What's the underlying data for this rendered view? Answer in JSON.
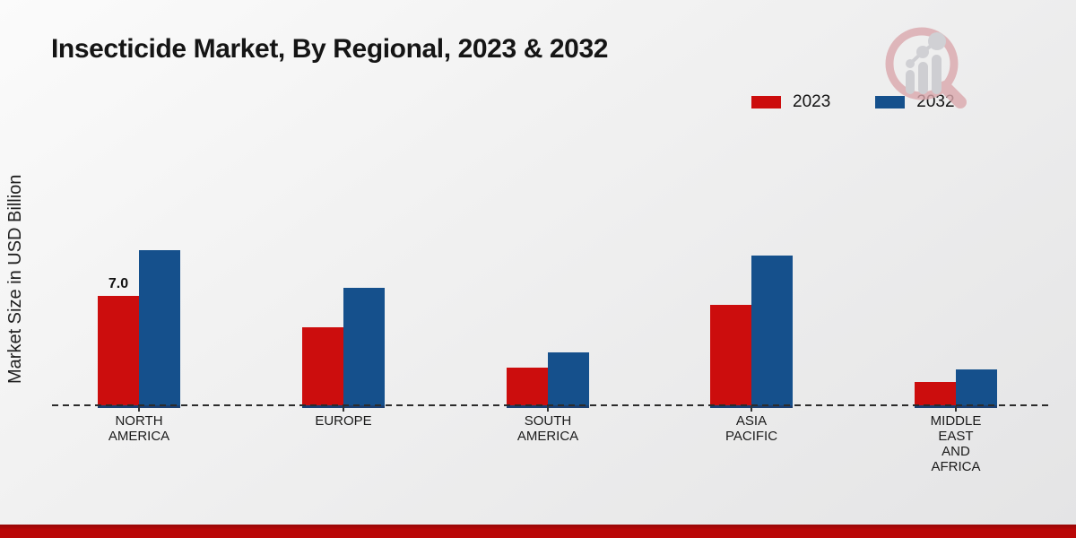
{
  "page": {
    "title": "Insecticide Market, By Regional, 2023 & 2032",
    "brand_logo": "magnifier-bar-chart-logo",
    "accent_bottom_bar_color": "#ba0707"
  },
  "chart_data": {
    "type": "bar",
    "title": "Insecticide Market, By Regional, 2023 & 2032",
    "xlabel": "",
    "ylabel": "Market Size in USD Billion",
    "ylim": [
      0,
      10.5
    ],
    "grid": false,
    "baseline_style": "dashed",
    "legend_position": "top-right",
    "categories": [
      {
        "name": "North America",
        "lines": [
          "NORTH",
          "AMERICA"
        ]
      },
      {
        "name": "Europe",
        "lines": [
          "EUROPE"
        ]
      },
      {
        "name": "South America",
        "lines": [
          "SOUTH",
          "AMERICA"
        ]
      },
      {
        "name": "Asia Pacific",
        "lines": [
          "ASIA",
          "PACIFIC"
        ]
      },
      {
        "name": "Middle East and Africa",
        "lines": [
          "MIDDLE",
          "EAST",
          "AND",
          "AFRICA"
        ]
      }
    ],
    "series": [
      {
        "name": "2023",
        "color": "#cc0d0d",
        "values": [
          7.0,
          5.0,
          2.4,
          6.4,
          1.5
        ]
      },
      {
        "name": "2032",
        "color": "#15508c",
        "values": [
          9.9,
          7.5,
          3.4,
          9.6,
          2.3
        ]
      }
    ],
    "bar_base_edge_color": "#1a3f72",
    "annotations": [
      {
        "series_index": 0,
        "category_index": 0,
        "text": "7.0"
      }
    ]
  }
}
